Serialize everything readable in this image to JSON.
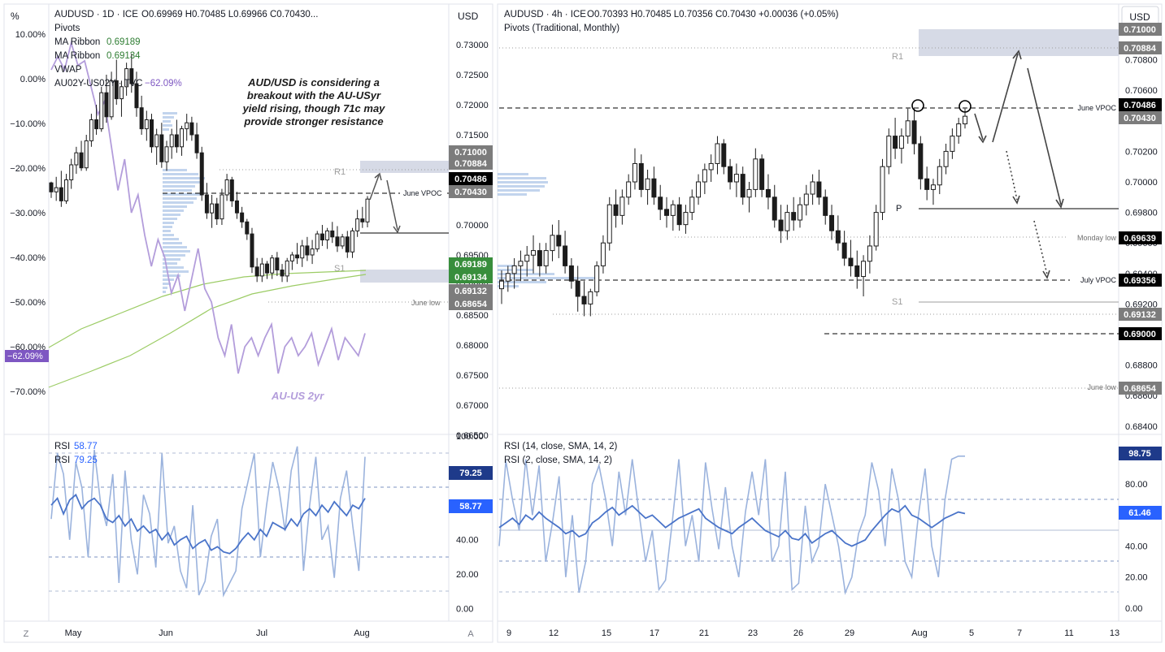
{
  "left_chart": {
    "pct_axis_title": "%",
    "price_axis_title": "USD",
    "header": {
      "symbol": "AUDUSD · 1D · ICE",
      "ohlc": "O0.69969  H0.70485  L0.69966  C0.70430...",
      "indicators": [
        {
          "label": "Pivots",
          "value": ""
        },
        {
          "label": "MA Ribbon",
          "value": "0.69189"
        },
        {
          "label": "MA Ribbon",
          "value": "0.69134"
        },
        {
          "label": "VWAP",
          "value": ""
        },
        {
          "label": "AU02Y-US02Y · TVC",
          "value": "−62.09%"
        }
      ]
    },
    "annotation": [
      "AUD/USD is considering a",
      "breakout with the AU-USyr",
      "yield rising, though 71c may",
      "provide stronger resistance"
    ],
    "series_label": "AU-US 2yr",
    "pct_ticks": [
      "10.00%",
      "0.00%",
      "−10.00%",
      "−20.00%",
      "−30.00%",
      "−40.00%",
      "−50.00%",
      "−60.00%",
      "−70.00%"
    ],
    "pct_badge": "−62.09%",
    "price_ticks": [
      "0.73000",
      "0.72500",
      "0.72000",
      "0.71500",
      "0.71000",
      "0.70500",
      "0.70000",
      "0.69500",
      "0.69000",
      "0.68500",
      "0.68000",
      "0.67500",
      "0.67000",
      "0.66500"
    ],
    "level_labels": {
      "r1": "R1",
      "s1": "S1",
      "june_vpoc": "June VPOC",
      "june_low": "June low"
    },
    "price_badges": [
      "0.71000",
      "0.70884",
      "0.70486",
      "0.70430",
      "0.69189",
      "0.69134",
      "0.69132",
      "0.68654"
    ],
    "x_labels": [
      "May",
      "Jun",
      "Jul",
      "Aug"
    ],
    "rsi_legend": [
      {
        "label": "RSI",
        "value": "58.77"
      },
      {
        "label": "RSI",
        "value": "79.25"
      }
    ],
    "rsi_ticks": [
      "100.00",
      "80.00",
      "60.00",
      "40.00",
      "20.00",
      "0.00"
    ],
    "rsi_badges": [
      "79.25",
      "58.77"
    ],
    "corner_left": "Z",
    "corner_right": "A"
  },
  "right_chart": {
    "price_axis_title": "USD",
    "header": {
      "symbol": "AUDUSD · 4h · ICE",
      "ohlc": "O0.70393  H0.70485  L0.70356  C0.70430  +0.00036 (+0.05%)",
      "subtitle": "Pivots (Traditional, Monthly)"
    },
    "price_ticks": [
      "0.71000",
      "0.70800",
      "0.70600",
      "0.70400",
      "0.70200",
      "0.70000",
      "0.69800",
      "0.69600",
      "0.69400",
      "0.69200",
      "0.69000",
      "0.68800",
      "0.68600",
      "0.68400"
    ],
    "level_labels": {
      "r1": "R1",
      "p": "P",
      "s1": "S1",
      "june_vpoc": "June VPOC",
      "monday_low": "Monday low",
      "july_vpoc": "July VPOC",
      "june_low": "June low"
    },
    "price_badges": [
      "0.71000",
      "0.70884",
      "0.70486",
      "0.70430",
      "0.69639",
      "0.69356",
      "0.69132",
      "0.69000",
      "0.68654"
    ],
    "x_labels": [
      "9",
      "12",
      "15",
      "17",
      "21",
      "23",
      "26",
      "29",
      "Aug",
      "5",
      "7",
      "11",
      "13"
    ],
    "rsi_legend": [
      "RSI (14, close, SMA, 14, 2)",
      "RSI (2, close, SMA, 14, 2)"
    ],
    "rsi_ticks": [
      "80.00",
      "60.00",
      "40.00",
      "20.00",
      "0.00"
    ],
    "rsi_badges": [
      "98.75",
      "61.46"
    ]
  },
  "colors": {
    "candle": "#1c1c1c",
    "purple_line": "#b39ddb",
    "ma_green": "#9ccc65",
    "rsi_dark": "#4a74c9",
    "rsi_light": "#9bb3dd",
    "badge_black": "#000000",
    "badge_gray": "#7c7c7c",
    "badge_green": "#388e3c",
    "badge_purple": "#7e57c2",
    "zone": "#c8cede"
  }
}
